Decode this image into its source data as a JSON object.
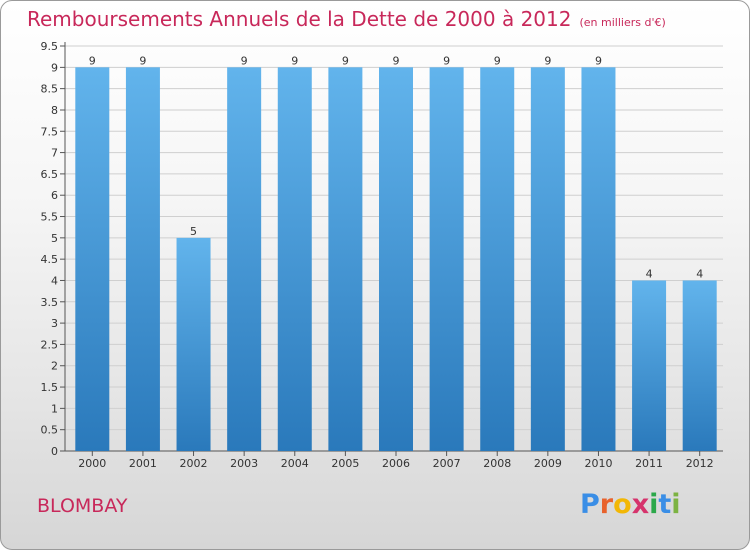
{
  "header": {
    "title": "Remboursements Annuels de la Dette de 2000 à 2012",
    "unit": "(en milliers d'€)"
  },
  "footer": {
    "commune": "BLOMBAY",
    "logo_letters": [
      "P",
      "r",
      "o",
      "x",
      "i",
      "t",
      "i"
    ],
    "logo_colors": [
      "#3a8ee6",
      "#e8622c",
      "#f2b705",
      "#d6336c",
      "#2ba84a",
      "#3a8ee6",
      "#7cb342"
    ]
  },
  "colors": {
    "bar_top": "#62b4ec",
    "bar_bottom": "#2a79bb",
    "grid": "#cfcfcf",
    "title": "#c8285a"
  },
  "chart_data": {
    "type": "bar",
    "title": "Remboursements Annuels de la Dette de 2000 à 2012",
    "xlabel": "",
    "ylabel": "",
    "categories": [
      "2000",
      "2001",
      "2002",
      "2003",
      "2004",
      "2005",
      "2006",
      "2007",
      "2008",
      "2009",
      "2010",
      "2011",
      "2012"
    ],
    "values": [
      9,
      9,
      5,
      9,
      9,
      9,
      9,
      9,
      9,
      9,
      9,
      4,
      4
    ],
    "data_labels": [
      "9",
      "9",
      "5",
      "9",
      "9",
      "9",
      "9",
      "9",
      "9",
      "9",
      "9",
      "4",
      "4"
    ],
    "yticks": [
      "0",
      "0.5",
      "1",
      "1.5",
      "2",
      "2.5",
      "3",
      "3.5",
      "4",
      "4.5",
      "5",
      "5.5",
      "6",
      "6.5",
      "7",
      "7.5",
      "8",
      "8.5",
      "9",
      "9.5"
    ],
    "ylim": [
      0,
      9.5
    ],
    "grid": true
  }
}
